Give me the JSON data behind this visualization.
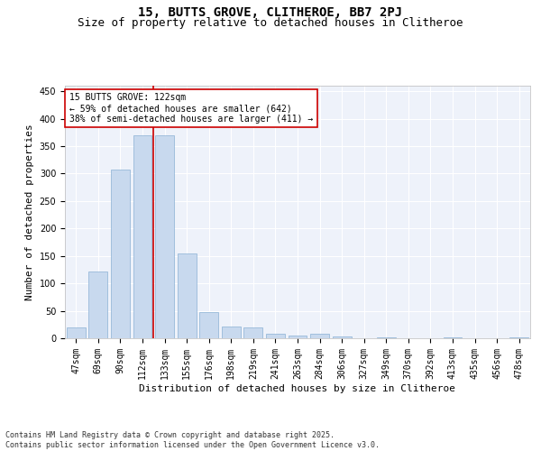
{
  "title1": "15, BUTTS GROVE, CLITHEROE, BB7 2PJ",
  "title2": "Size of property relative to detached houses in Clitheroe",
  "xlabel": "Distribution of detached houses by size in Clitheroe",
  "ylabel": "Number of detached properties",
  "categories": [
    "47sqm",
    "69sqm",
    "90sqm",
    "112sqm",
    "133sqm",
    "155sqm",
    "176sqm",
    "198sqm",
    "219sqm",
    "241sqm",
    "263sqm",
    "284sqm",
    "306sqm",
    "327sqm",
    "349sqm",
    "370sqm",
    "392sqm",
    "413sqm",
    "435sqm",
    "456sqm",
    "478sqm"
  ],
  "values": [
    20,
    122,
    307,
    370,
    370,
    155,
    48,
    21,
    20,
    8,
    5,
    8,
    3,
    0,
    2,
    0,
    0,
    1,
    0,
    0,
    2
  ],
  "bar_color": "#c8d9ee",
  "bar_edge_color": "#8ab0d4",
  "vline_color": "#cc0000",
  "annotation_text": "15 BUTTS GROVE: 122sqm\n← 59% of detached houses are smaller (642)\n38% of semi-detached houses are larger (411) →",
  "annotation_box_color": "#ffffff",
  "annotation_box_edge": "#cc0000",
  "ylim": [
    0,
    460
  ],
  "yticks": [
    0,
    50,
    100,
    150,
    200,
    250,
    300,
    350,
    400,
    450
  ],
  "bg_color": "#eef2fa",
  "grid_color": "#ffffff",
  "footer": "Contains HM Land Registry data © Crown copyright and database right 2025.\nContains public sector information licensed under the Open Government Licence v3.0.",
  "title1_fontsize": 10,
  "title2_fontsize": 9,
  "xlabel_fontsize": 8,
  "ylabel_fontsize": 8,
  "tick_fontsize": 7,
  "annotation_fontsize": 7,
  "footer_fontsize": 6
}
